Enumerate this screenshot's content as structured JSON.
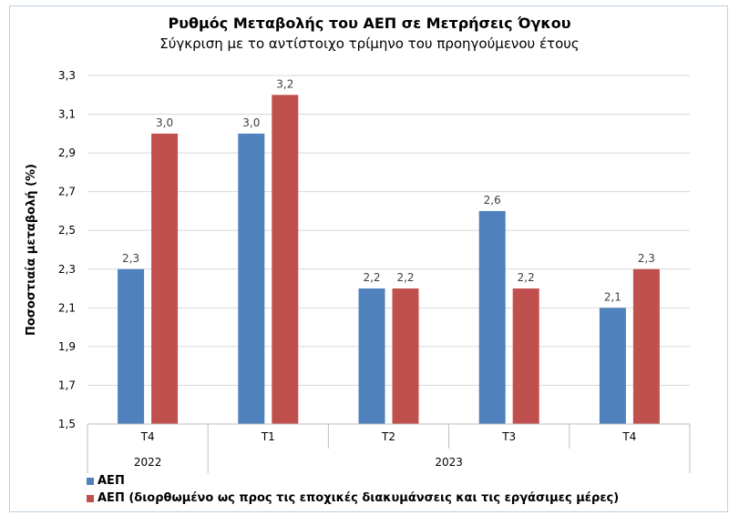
{
  "chart_data": {
    "type": "bar",
    "title": "Ρυθμός Μεταβολής του ΑΕΠ σε Μετρήσεις Όγκου",
    "subtitle": "Σύγκριση με το αντίστοιχο τρίμηνο του προηγούμενου έτους",
    "ylabel": "Ποσοστιαία μεταβολή (%)",
    "ylim": [
      1.5,
      3.3
    ],
    "yticks": [
      "1,5",
      "1,7",
      "1,9",
      "2,1",
      "2,3",
      "2,5",
      "2,7",
      "2,9",
      "3,1",
      "3,3"
    ],
    "ytick_values": [
      1.5,
      1.7,
      1.9,
      2.1,
      2.3,
      2.5,
      2.7,
      2.9,
      3.1,
      3.3
    ],
    "categories": [
      "T4",
      "T1",
      "T2",
      "T3",
      "T4"
    ],
    "category_groups": [
      {
        "label": "2022",
        "span": 1
      },
      {
        "label": "2023",
        "span": 4
      }
    ],
    "series": [
      {
        "name": "ΑΕΠ",
        "color": "#4f81bd",
        "values": [
          2.3,
          3.0,
          2.2,
          2.6,
          2.1
        ],
        "labels": [
          "2,3",
          "3,0",
          "2,2",
          "2,6",
          "2,1"
        ]
      },
      {
        "name": "ΑΕΠ (διορθωμένο ως προς τις εποχικές διακυμάνσεις και τις εργάσιμες μέρες)",
        "color": "#c0504d",
        "values": [
          3.0,
          3.2,
          2.2,
          2.2,
          2.3
        ],
        "labels": [
          "3,0",
          "3,2",
          "2,2",
          "2,2",
          "2,3"
        ]
      }
    ],
    "grid": true,
    "legend": "bottom-left"
  }
}
